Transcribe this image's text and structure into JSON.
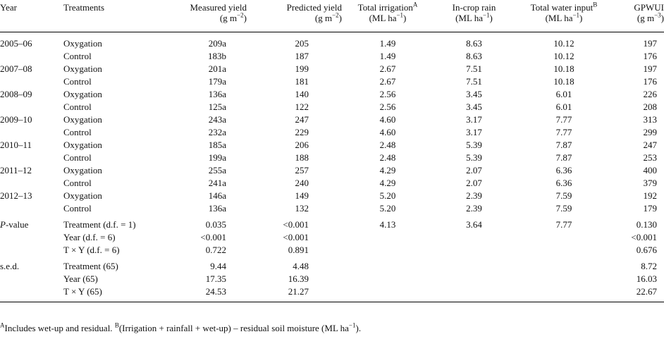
{
  "headers": {
    "year": "Year",
    "treatments": "Treatments",
    "measured_yield": "Measured yield",
    "measured_yield_unit": "(g m",
    "measured_yield_unit_exp": "−2",
    "predicted_yield": "Predicted yield",
    "predicted_yield_unit": "(g m",
    "predicted_yield_unit_exp": "−2",
    "total_irrigation": "Total irrigation",
    "total_irrigation_sup": "A",
    "total_irrigation_unit": "(ML ha",
    "total_irrigation_unit_exp": "−1",
    "incrop_rain": "In-crop rain",
    "incrop_rain_unit": "(ML ha",
    "incrop_rain_unit_exp": "−1",
    "total_water": "Total water input",
    "total_water_sup": "B",
    "total_water_unit": "(ML ha",
    "total_water_unit_exp": "−1",
    "gpwui": "GPWUI",
    "gpwui_unit": "(g m",
    "gpwui_unit_exp": "−3"
  },
  "rows": [
    {
      "year": "2005–06",
      "treatment": "Oxygation",
      "measured": "209a",
      "predicted": "205",
      "irrigation": "1.49",
      "rain": "8.63",
      "water": "10.12",
      "gpwui": "197"
    },
    {
      "year": "",
      "treatment": "Control",
      "measured": "183b",
      "predicted": "187",
      "irrigation": "1.49",
      "rain": "8.63",
      "water": "10.12",
      "gpwui": "176"
    },
    {
      "year": "2007–08",
      "treatment": "Oxygation",
      "measured": "201a",
      "predicted": "199",
      "irrigation": "2.67",
      "rain": "7.51",
      "water": "10.18",
      "gpwui": "197"
    },
    {
      "year": "",
      "treatment": "Control",
      "measured": "179a",
      "predicted": "181",
      "irrigation": "2.67",
      "rain": "7.51",
      "water": "10.18",
      "gpwui": "176"
    },
    {
      "year": "2008–09",
      "treatment": "Oxygation",
      "measured": "136a",
      "predicted": "140",
      "irrigation": "2.56",
      "rain": "3.45",
      "water": "6.01",
      "gpwui": "226"
    },
    {
      "year": "",
      "treatment": "Control",
      "measured": "125a",
      "predicted": "122",
      "irrigation": "2.56",
      "rain": "3.45",
      "water": "6.01",
      "gpwui": "208"
    },
    {
      "year": "2009–10",
      "treatment": "Oxygation",
      "measured": "243a",
      "predicted": "247",
      "irrigation": "4.60",
      "rain": "3.17",
      "water": "7.77",
      "gpwui": "313"
    },
    {
      "year": "",
      "treatment": "Control",
      "measured": "232a",
      "predicted": "229",
      "irrigation": "4.60",
      "rain": "3.17",
      "water": "7.77",
      "gpwui": "299"
    },
    {
      "year": "2010–11",
      "treatment": "Oxygation",
      "measured": "185a",
      "predicted": "206",
      "irrigation": "2.48",
      "rain": "5.39",
      "water": "7.87",
      "gpwui": "247"
    },
    {
      "year": "",
      "treatment": "Control",
      "measured": "199a",
      "predicted": "188",
      "irrigation": "2.48",
      "rain": "5.39",
      "water": "7.87",
      "gpwui": "253"
    },
    {
      "year": "2011–12",
      "treatment": "Oxygation",
      "measured": "255a",
      "predicted": "257",
      "irrigation": "4.29",
      "rain": "2.07",
      "water": "6.36",
      "gpwui": "400"
    },
    {
      "year": "",
      "treatment": "Control",
      "measured": "241a",
      "predicted": "240",
      "irrigation": "4.29",
      "rain": "2.07",
      "water": "6.36",
      "gpwui": "379"
    },
    {
      "year": "2012–13",
      "treatment": "Oxygation",
      "measured": "146a",
      "predicted": "149",
      "irrigation": "5.20",
      "rain": "2.39",
      "water": "7.59",
      "gpwui": "192"
    },
    {
      "year": "",
      "treatment": "Control",
      "measured": "136a",
      "predicted": "132",
      "irrigation": "5.20",
      "rain": "2.39",
      "water": "7.59",
      "gpwui": "179"
    }
  ],
  "pvalue": {
    "label_italic": "P",
    "label_rest": "-value",
    "rows": [
      {
        "treatment": "Treatment (d.f. = 1)",
        "measured": "0.035",
        "predicted": "<0.001",
        "irrigation": "4.13",
        "rain": "3.64",
        "water": "7.77",
        "gpwui": "0.130"
      },
      {
        "treatment": "Year (d.f. = 6)",
        "measured": "<0.001",
        "predicted": "<0.001",
        "irrigation": "",
        "rain": "",
        "water": "",
        "gpwui": "<0.001"
      },
      {
        "treatment": "T × Y (d.f. = 6)",
        "measured": "0.722",
        "predicted": "0.891",
        "irrigation": "",
        "rain": "",
        "water": "",
        "gpwui": "0.676"
      }
    ]
  },
  "sed": {
    "label": "s.e.d.",
    "rows": [
      {
        "treatment": "Treatment (65)",
        "measured": "9.44",
        "predicted": "4.48",
        "gpwui": "8.72"
      },
      {
        "treatment": "Year (65)",
        "measured": "17.35",
        "predicted": "16.39",
        "gpwui": "16.03"
      },
      {
        "treatment": "T × Y (65)",
        "measured": "24.53",
        "predicted": "21.27",
        "gpwui": "22.67"
      }
    ]
  },
  "footnote": {
    "a_mark": "A",
    "a_text": "Includes wet-up and residual. ",
    "b_mark": "B",
    "b_text": "(Irrigation + rainfall + wet-up) – residual soil moisture (ML ha",
    "b_exp": "−1",
    "b_end": ")."
  }
}
